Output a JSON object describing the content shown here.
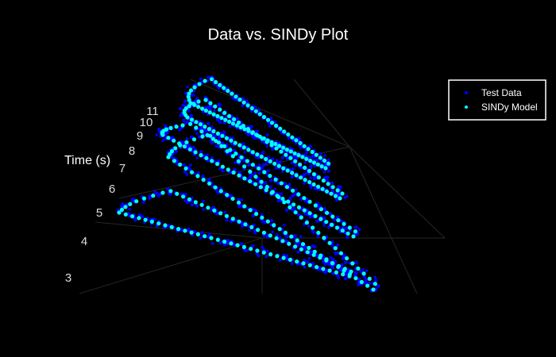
{
  "chart_data": {
    "type": "scatter",
    "title": "Data vs. SINDy Plot",
    "zlabel": "Time (s)",
    "z_ticks": [
      "3",
      "4",
      "5",
      "6",
      "7",
      "8",
      "9",
      "10",
      "11"
    ],
    "z_range": [
      3,
      11
    ],
    "legend_placement": "top-right",
    "background": "#000000",
    "series": [
      {
        "name": "Test Data",
        "color": "#0000ff"
      },
      {
        "name": "SINDy Model",
        "color": "#00ffff"
      }
    ]
  }
}
